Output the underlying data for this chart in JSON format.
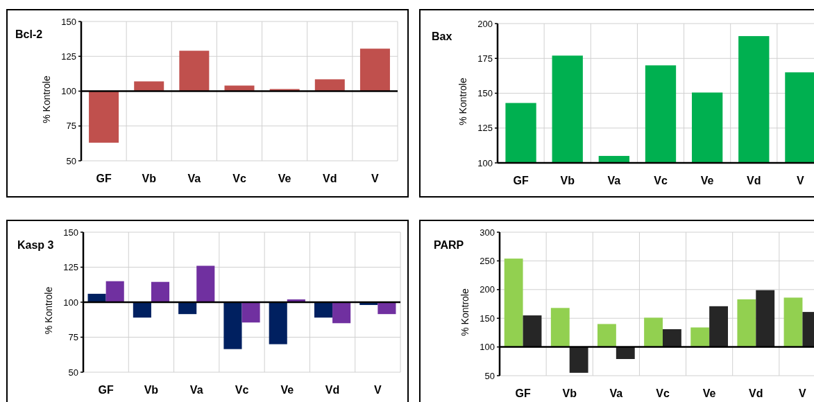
{
  "chart_data": [
    {
      "type": "bar",
      "title": "Bcl-2",
      "ylabel": "% Kontrole",
      "categories": [
        "GF",
        "Vb",
        "Va",
        "Vc",
        "Ve",
        "Vd",
        "V"
      ],
      "base": [
        100,
        100,
        100,
        100,
        100,
        100,
        100
      ],
      "values": [
        -37,
        7,
        29,
        4,
        1.5,
        8.5,
        30.5
      ],
      "color": "#c0504d",
      "ylim": [
        50,
        150
      ],
      "yticks": [
        50,
        75,
        100,
        125,
        150
      ],
      "grid": true,
      "ref_lines": [
        {
          "axis": "y",
          "value": 100,
          "color": "#000000"
        }
      ]
    },
    {
      "type": "bar",
      "title": "Bax",
      "ylabel": "% Kontrole",
      "categories": [
        "GF",
        "Vb",
        "Va",
        "Vc",
        "Ve",
        "Vd",
        "V"
      ],
      "values": [
        143,
        177,
        105,
        170,
        150.5,
        191,
        165
      ],
      "color": "#00b050",
      "ylim": [
        100,
        200
      ],
      "yticks": [
        100,
        125,
        150,
        175,
        200
      ],
      "grid": true
    },
    {
      "type": "bar",
      "title": "Kasp 3",
      "ylabel": "% Kontrole",
      "categories": [
        "GF",
        "Vb",
        "Va",
        "Vc",
        "Ve",
        "Vd",
        "V"
      ],
      "series": [
        {
          "color": "#002060",
          "base": [
            100,
            100,
            100,
            100,
            100,
            100,
            100
          ],
          "values": [
            6,
            -11,
            -8.5,
            -33.5,
            -30,
            -11,
            -2
          ]
        },
        {
          "color": "#7030a0",
          "base": [
            100,
            100,
            100,
            100,
            100,
            100,
            100
          ],
          "values": [
            15,
            14.5,
            26,
            -14.5,
            2,
            -15,
            -8.5
          ]
        }
      ],
      "ylim": [
        50,
        150
      ],
      "yticks": [
        50,
        75,
        100,
        125,
        150
      ],
      "grid": true,
      "ref_lines": [
        {
          "axis": "y",
          "value": 100,
          "color": "#000000"
        }
      ]
    },
    {
      "type": "bar",
      "title": "PARP",
      "ylabel": "% Kontrole",
      "categories": [
        "GF",
        "Vb",
        "Va",
        "Vc",
        "Ve",
        "Vd",
        "V"
      ],
      "series": [
        {
          "color": "#92d050",
          "base": [
            100,
            100,
            100,
            100,
            100,
            100,
            100
          ],
          "values": [
            154,
            68,
            40,
            51,
            34,
            83,
            86
          ]
        },
        {
          "color": "#262626",
          "base": [
            100,
            100,
            100,
            100,
            100,
            100,
            100
          ],
          "values": [
            55,
            -45,
            -21,
            31,
            71,
            99,
            61
          ]
        }
      ],
      "ylim": [
        50,
        300
      ],
      "yticks": [
        50,
        100,
        150,
        200,
        250,
        300
      ],
      "grid": true,
      "ref_lines": [
        {
          "axis": "y",
          "value": 100,
          "color": "#000000"
        }
      ]
    }
  ]
}
